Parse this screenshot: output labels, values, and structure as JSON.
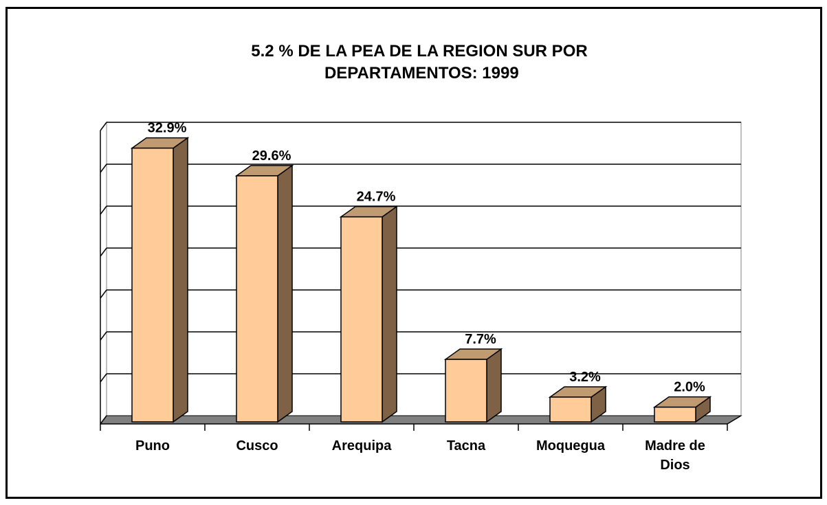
{
  "chart_data": {
    "type": "bar3d",
    "title": "5.2 % DE LA PEA DE LA REGION SUR POR DEPARTAMENTOS: 1999",
    "categories": [
      "Puno",
      "Cusco",
      "Arequipa",
      "Tacna",
      "Moquegua",
      "Madre de Dios"
    ],
    "values": [
      32.9,
      29.6,
      24.7,
      7.7,
      3.2,
      2.0
    ],
    "value_labels": [
      "32.9%",
      "29.6%",
      "24.7%",
      "7.7%",
      "3.2%",
      "2.0%"
    ],
    "color": "#ffcc99",
    "ylim": [
      0,
      35
    ],
    "yticks": [
      0,
      5,
      10,
      15,
      20,
      25,
      30,
      35
    ],
    "grid": true
  }
}
